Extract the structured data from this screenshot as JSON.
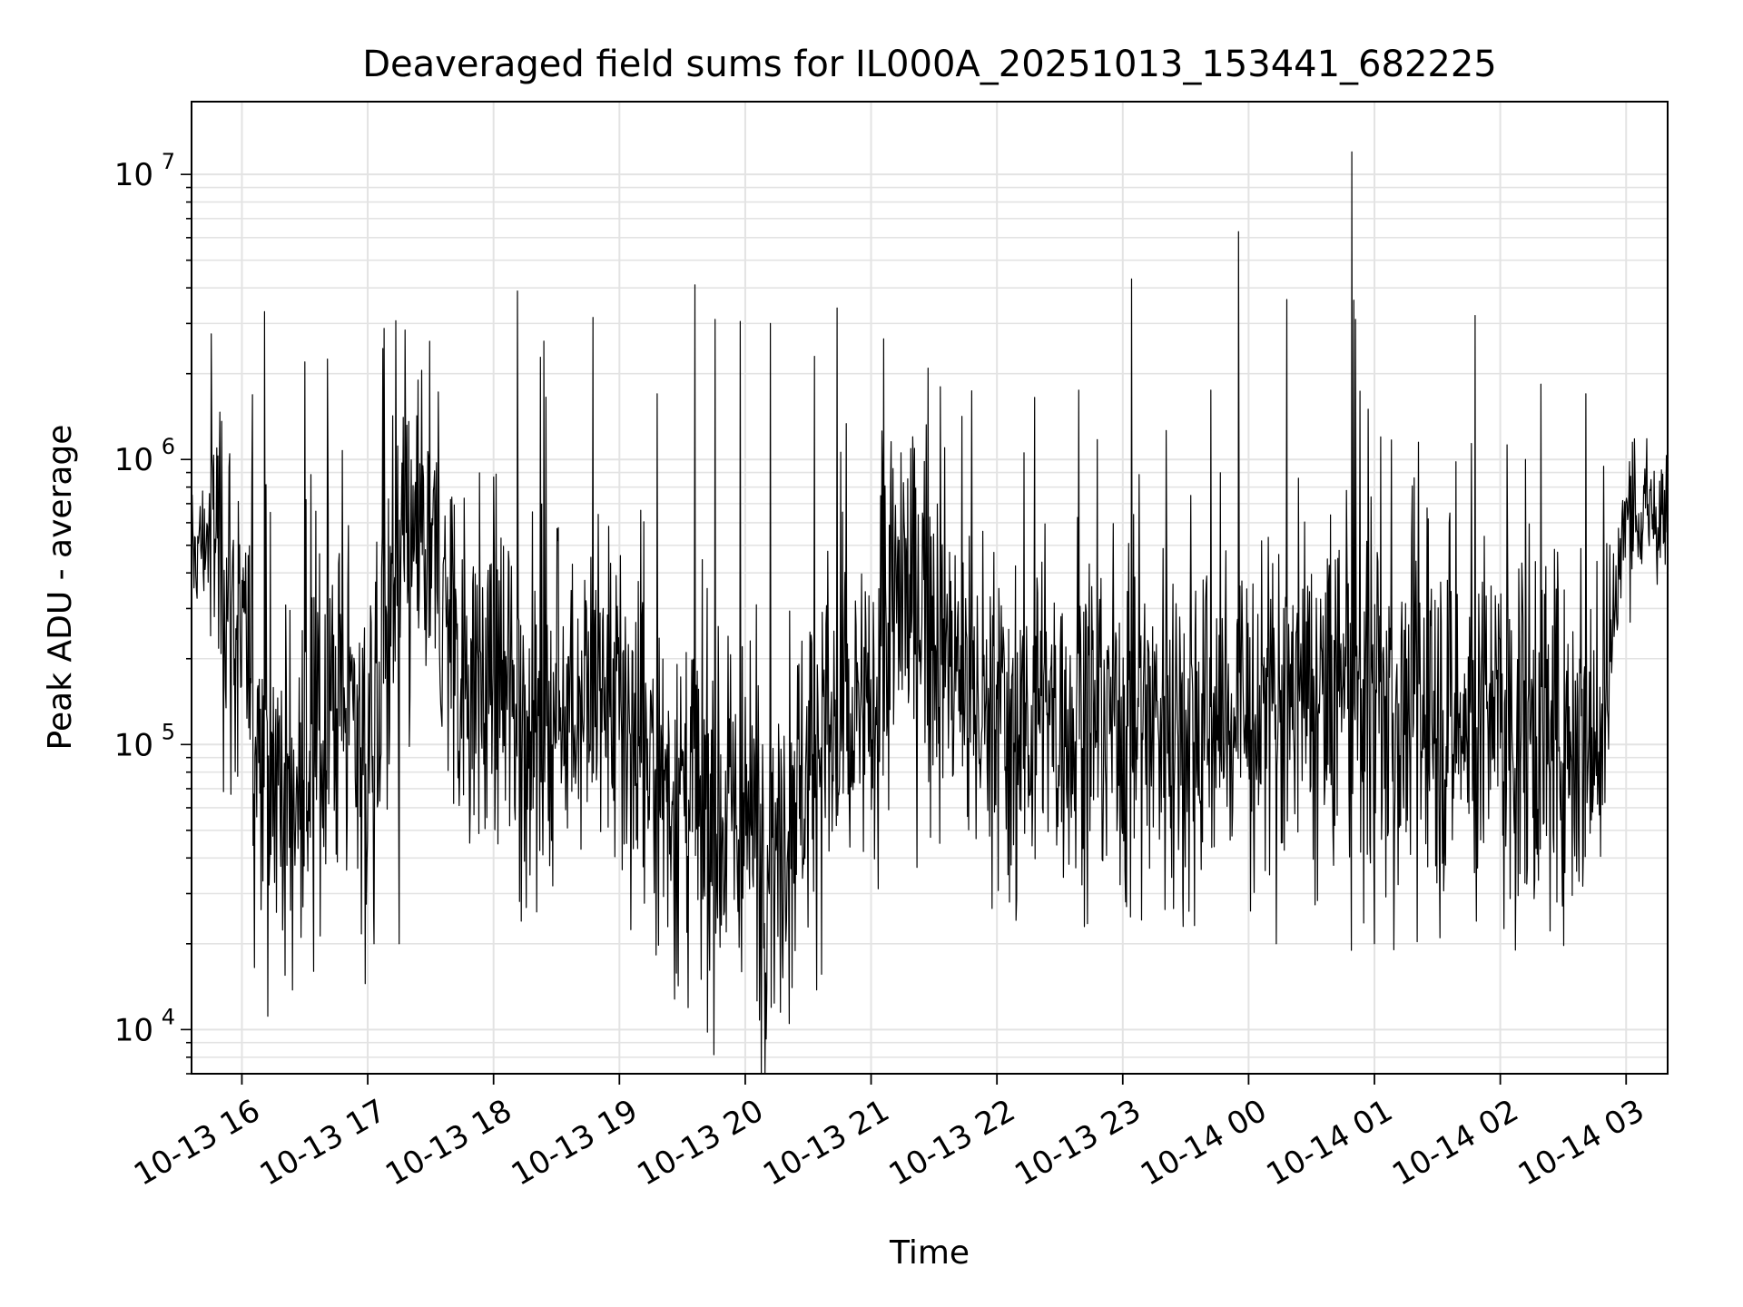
{
  "chart_data": {
    "type": "line",
    "title": "Deaveraged field sums for IL000A_20251013_153441_682225",
    "xlabel": "Time",
    "ylabel": "Peak ADU - average",
    "yscale": "log",
    "ylim": [
      7000,
      18000000
    ],
    "x_range_hours": [
      15.6,
      27.33
    ],
    "x_tick_labels": [
      "10-13 16",
      "10-13 17",
      "10-13 18",
      "10-13 19",
      "10-13 20",
      "10-13 21",
      "10-13 22",
      "10-13 23",
      "10-14 00",
      "10-14 01",
      "10-14 02",
      "10-14 03"
    ],
    "x_tick_hours": [
      16,
      17,
      18,
      19,
      20,
      21,
      22,
      23,
      24,
      25,
      26,
      27
    ],
    "y_tick_labels": [
      {
        "base": "10",
        "exp": "4"
      },
      {
        "base": "10",
        "exp": "5"
      },
      {
        "base": "10",
        "exp": "6"
      },
      {
        "base": "10",
        "exp": "7"
      }
    ],
    "y_tick_values": [
      10000,
      100000,
      1000000,
      10000000
    ],
    "grid": true,
    "line_color": "#000000",
    "series": [
      {
        "name": "deaveraged sums",
        "baseline_hours": [
          15.6,
          15.8,
          16.0,
          16.2,
          16.4,
          16.6,
          16.8,
          17.0,
          17.2,
          17.4,
          17.6,
          17.8,
          18.0,
          18.2,
          18.4,
          18.6,
          18.8,
          19.0,
          19.2,
          19.4,
          19.6,
          19.8,
          20.0,
          20.2,
          20.4,
          20.6,
          20.8,
          21.0,
          21.2,
          21.4,
          21.6,
          21.8,
          22.0,
          22.5,
          23.0,
          23.5,
          24.0,
          24.5,
          25.0,
          25.5,
          26.0,
          26.5,
          26.75,
          26.85,
          27.0,
          27.33
        ],
        "baseline_values": [
          450000,
          600000,
          200000,
          90000,
          60000,
          100000,
          160000,
          90000,
          350000,
          500000,
          300000,
          180000,
          150000,
          140000,
          110000,
          160000,
          140000,
          120000,
          90000,
          70000,
          60000,
          55000,
          50000,
          45000,
          70000,
          110000,
          100000,
          120000,
          320000,
          350000,
          200000,
          140000,
          130000,
          120000,
          130000,
          125000,
          120000,
          140000,
          130000,
          120000,
          115000,
          120000,
          110000,
          180000,
          650000,
          600000
        ],
        "notable_spikes": [
          {
            "hour": 24.82,
            "value": 12000000
          },
          {
            "hour": 23.92,
            "value": 6300000
          },
          {
            "hour": 23.07,
            "value": 4300000
          },
          {
            "hour": 19.6,
            "value": 4100000
          },
          {
            "hour": 18.19,
            "value": 3900000
          },
          {
            "hour": 20.73,
            "value": 3400000
          },
          {
            "hour": 16.18,
            "value": 3300000
          },
          {
            "hour": 25.8,
            "value": 3200000
          },
          {
            "hour": 18.79,
            "value": 3150000
          },
          {
            "hour": 19.76,
            "value": 3100000
          },
          {
            "hour": 24.85,
            "value": 3100000
          },
          {
            "hour": 19.96,
            "value": 3050000
          },
          {
            "hour": 20.2,
            "value": 3000000
          },
          {
            "hour": 21.1,
            "value": 2650000
          },
          {
            "hour": 18.4,
            "value": 2600000
          },
          {
            "hour": 17.12,
            "value": 2450000
          },
          {
            "hour": 16.68,
            "value": 2250000
          },
          {
            "hour": 20.55,
            "value": 2300000
          },
          {
            "hour": 16.5,
            "value": 2200000
          },
          {
            "hour": 23.7,
            "value": 1750000
          },
          {
            "hour": 26.68,
            "value": 1700000
          },
          {
            "hour": 22.65,
            "value": 1750000
          },
          {
            "hour": 19.3,
            "value": 1700000
          },
          {
            "hour": 21.55,
            "value": 1800000
          },
          {
            "hour": 22.3,
            "value": 1650000
          },
          {
            "hour": 17.4,
            "value": 1900000
          },
          {
            "hour": 24.22,
            "value": 1550000
          },
          {
            "hour": 25.05,
            "value": 1200000
          },
          {
            "hour": 25.35,
            "value": 1150000
          },
          {
            "hour": 26.2,
            "value": 1000000
          },
          {
            "hour": 27.05,
            "value": 1150000
          },
          {
            "hour": 24.95,
            "value": 1500000
          }
        ],
        "notable_dips": [
          {
            "hour": 19.7,
            "value": 9800
          },
          {
            "hour": 20.35,
            "value": 10500
          },
          {
            "hour": 20.28,
            "value": 11500
          },
          {
            "hour": 16.98,
            "value": 14500
          },
          {
            "hour": 19.65,
            "value": 15000
          },
          {
            "hour": 16.1,
            "value": 16500
          },
          {
            "hour": 16.57,
            "value": 16000
          },
          {
            "hour": 17.05,
            "value": 20000
          },
          {
            "hour": 25.0,
            "value": 20000
          },
          {
            "hour": 26.12,
            "value": 19000
          },
          {
            "hour": 24.22,
            "value": 20000
          },
          {
            "hour": 22.1,
            "value": 28000
          },
          {
            "hour": 23.03,
            "value": 27000
          },
          {
            "hour": 23.48,
            "value": 23000
          },
          {
            "hour": 18.22,
            "value": 24000
          },
          {
            "hour": 17.25,
            "value": 20000
          },
          {
            "hour": 25.81,
            "value": 24000
          },
          {
            "hour": 26.45,
            "value": 28000
          }
        ]
      }
    ]
  }
}
